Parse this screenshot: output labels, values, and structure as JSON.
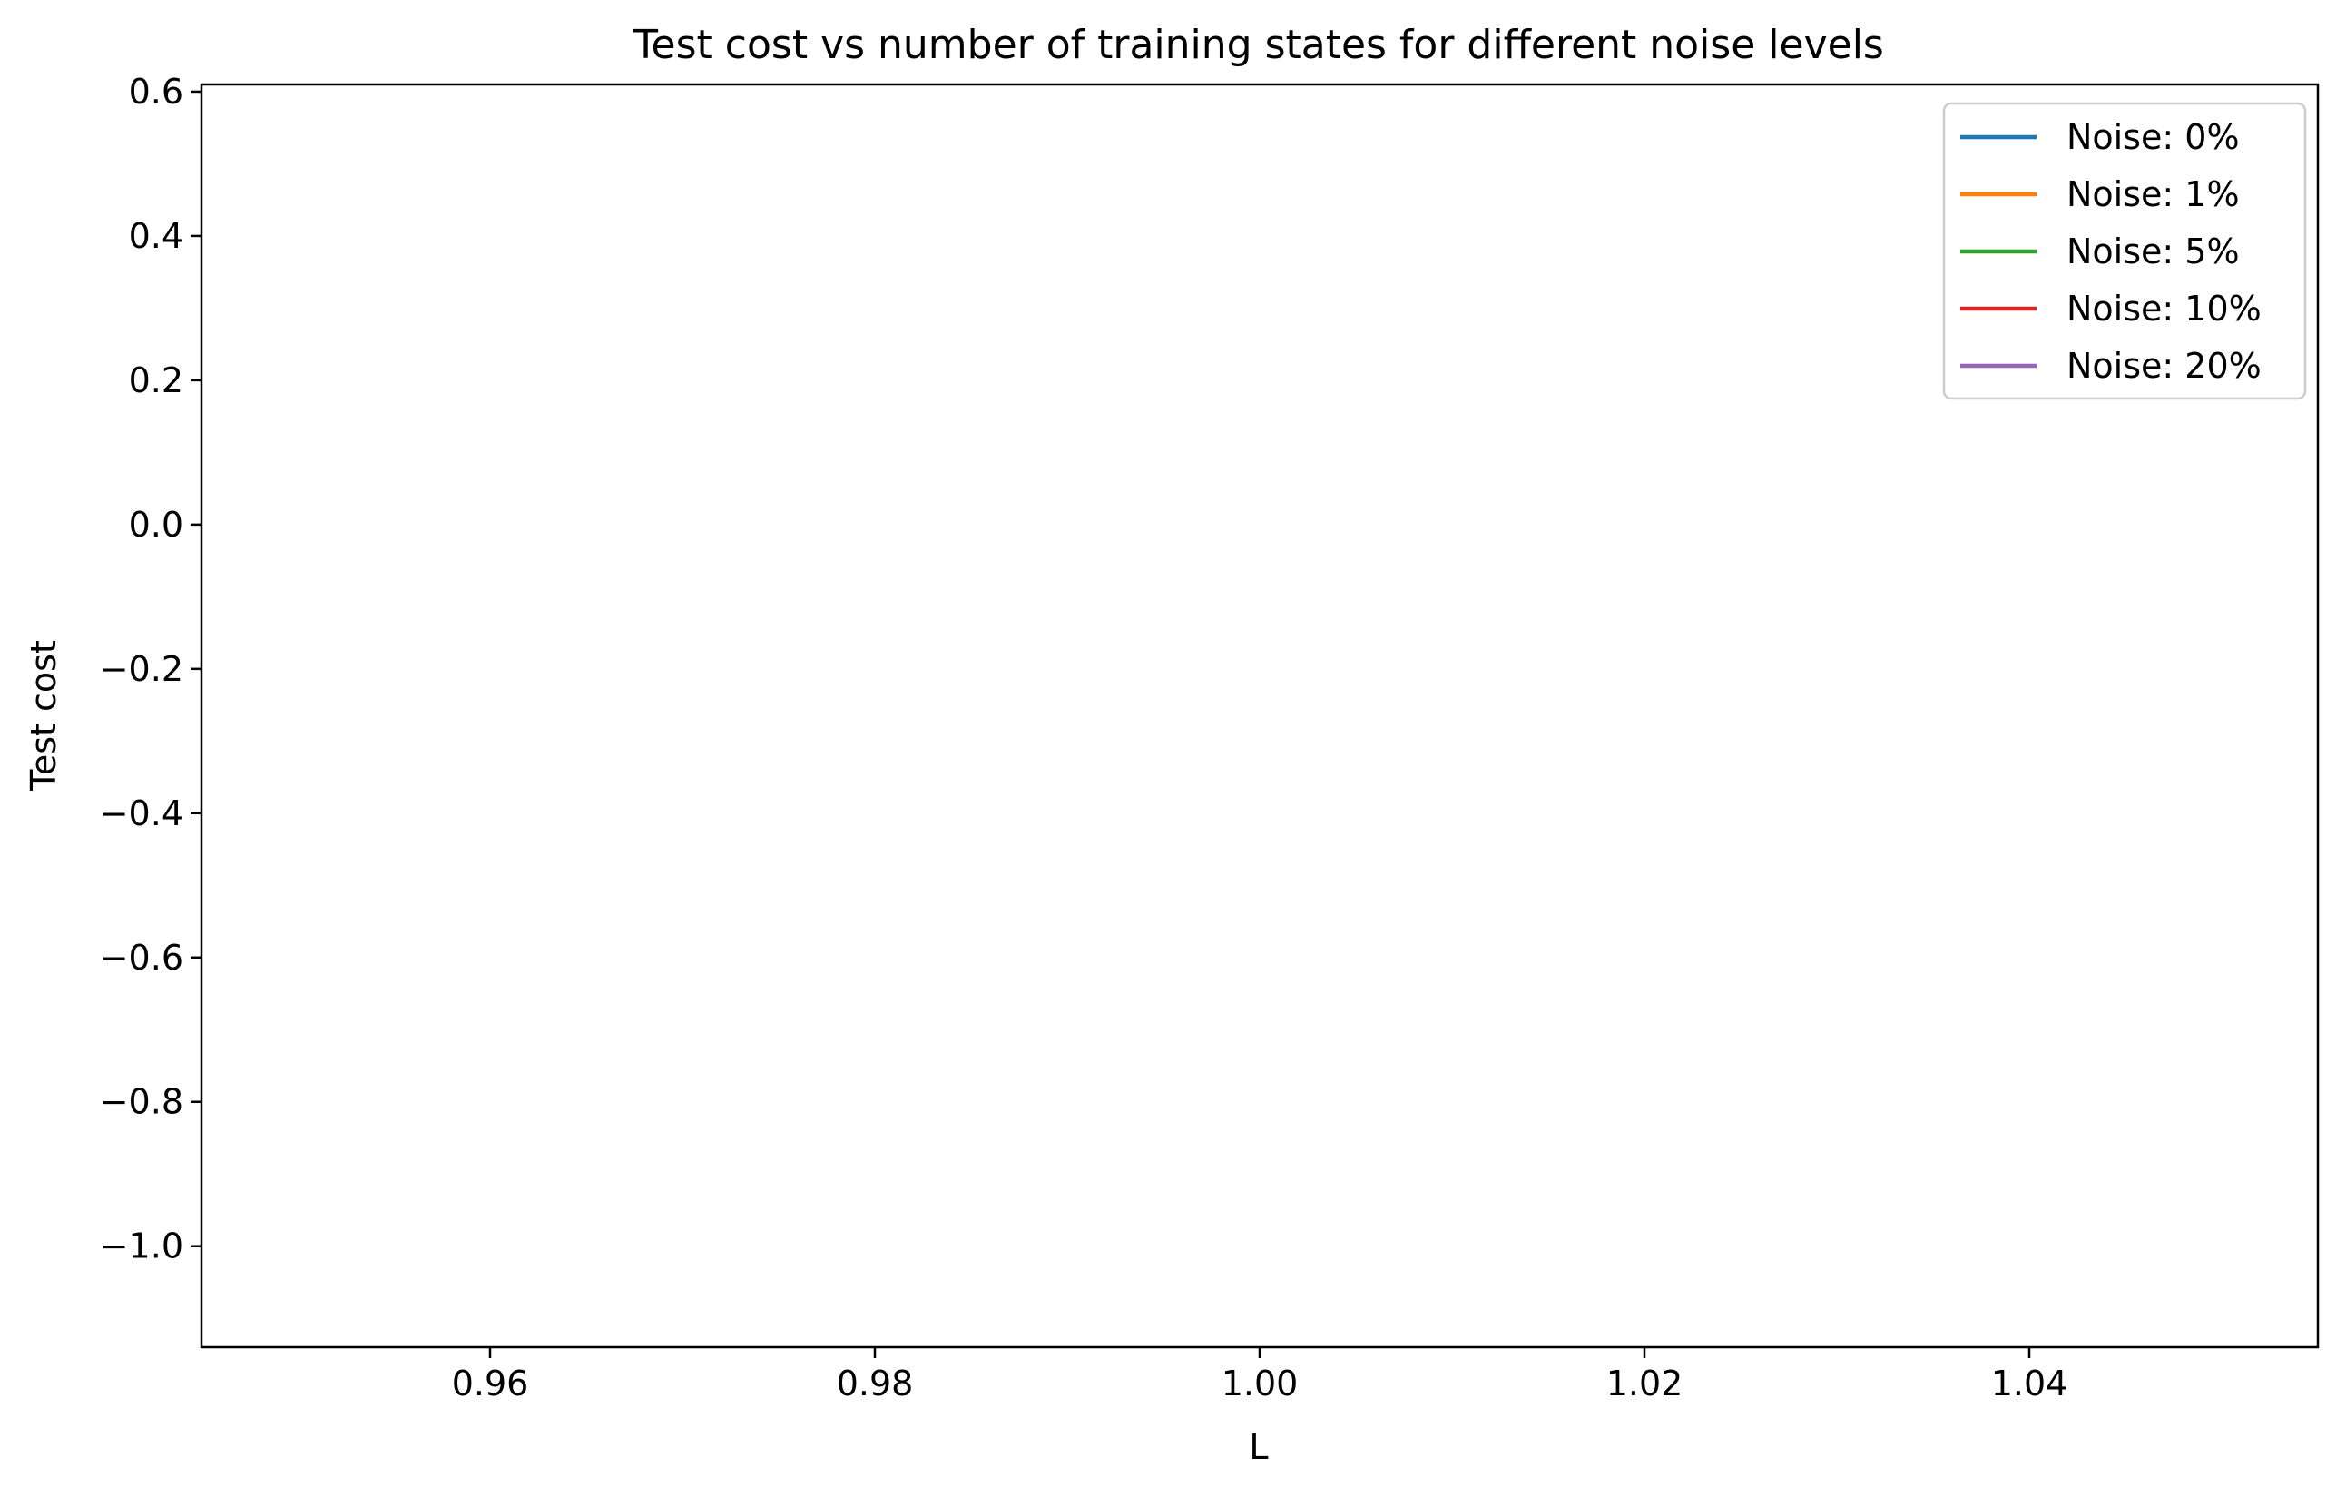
{
  "chart_data": {
    "type": "line",
    "title": "Test cost vs number of training states for different noise levels",
    "xlabel": "L",
    "ylabel": "Test cost",
    "xlim": [
      0.945,
      1.055
    ],
    "ylim": [
      -1.14,
      0.61
    ],
    "xticks": [
      0.96,
      0.98,
      1.0,
      1.02,
      1.04
    ],
    "xtick_labels": [
      "0.96",
      "0.98",
      "1.00",
      "1.02",
      "1.04"
    ],
    "yticks": [
      0.6,
      0.4,
      0.2,
      0.0,
      -0.2,
      -0.4,
      -0.6,
      -0.8,
      -1.0
    ],
    "ytick_labels": [
      "0.6",
      "0.4",
      "0.2",
      "0.0",
      "−0.2",
      "−0.4",
      "−0.6",
      "−0.8",
      "−1.0"
    ],
    "grid": false,
    "legend_position": "top-right",
    "series": [
      {
        "name": "Noise: 0%",
        "color": "#1f77b4",
        "x": [],
        "y": []
      },
      {
        "name": "Noise: 1%",
        "color": "#ff7f0e",
        "x": [],
        "y": []
      },
      {
        "name": "Noise: 5%",
        "color": "#2ca02c",
        "x": [],
        "y": []
      },
      {
        "name": "Noise: 10%",
        "color": "#d62728",
        "x": [],
        "y": []
      },
      {
        "name": "Noise: 20%",
        "color": "#9467bd",
        "x": [],
        "y": []
      }
    ]
  }
}
